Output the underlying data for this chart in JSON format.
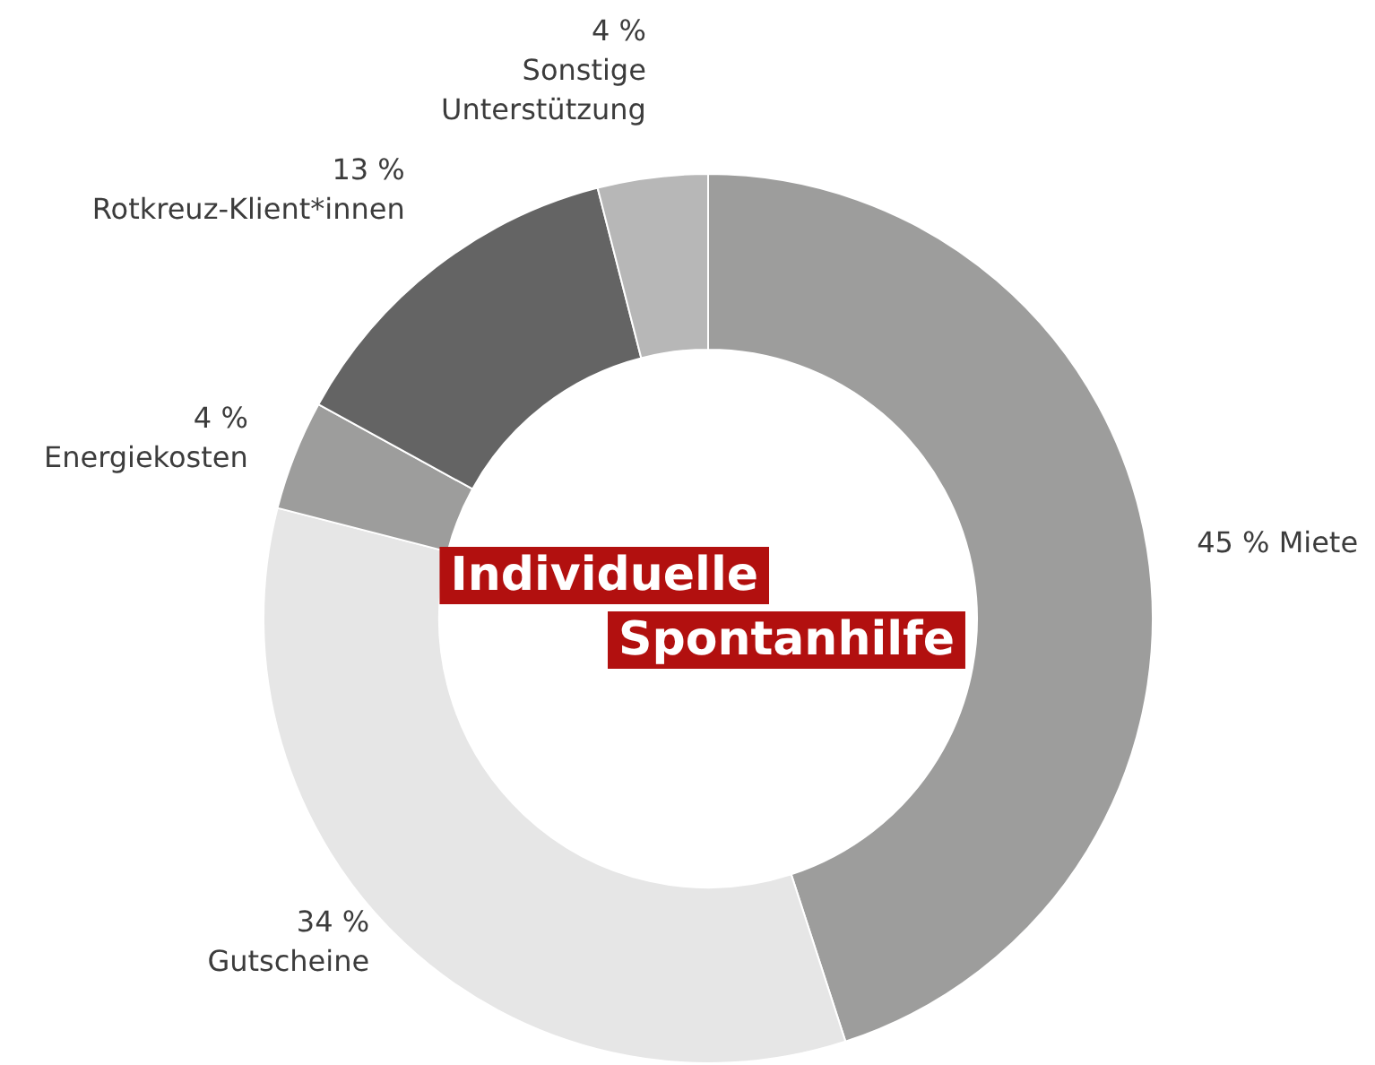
{
  "chart_data": {
    "type": "donut",
    "title": "Individuelle Spontanhilfe",
    "categories": [
      "Miete",
      "Gutscheine",
      "Energiekosten",
      "Rotkreuz-Klient*innen",
      "Sonstige Unterstützung"
    ],
    "values": [
      45,
      34,
      4,
      13,
      4
    ],
    "value_labels": [
      "45 %",
      "34 %",
      "4 %",
      "13 %",
      "4 %"
    ],
    "colors": [
      "#9d9d9c",
      "#e6e6e6",
      "#9d9d9c",
      "#646464",
      "#b7b7b7"
    ]
  }
}
